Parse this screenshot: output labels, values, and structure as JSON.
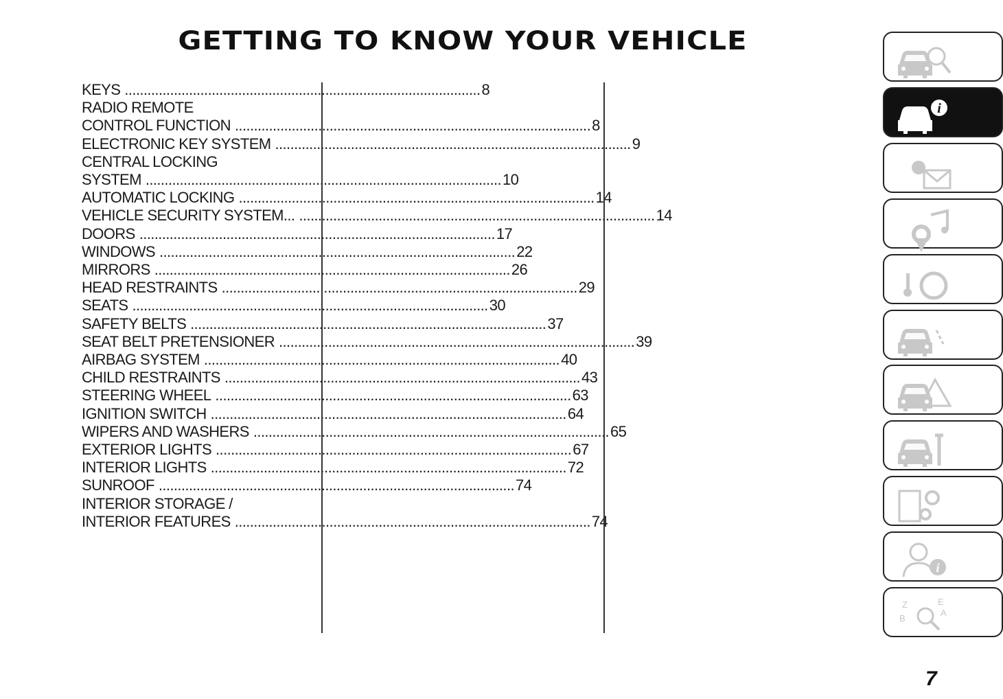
{
  "title": "GETTING TO KNOW YOUR VEHICLE",
  "toc": [
    {
      "lines": [
        {
          "text": "KEYS",
          "page": "8"
        }
      ]
    },
    {
      "lines": [
        {
          "text": "RADIO REMOTE"
        },
        {
          "text": "CONTROL FUNCTION",
          "page": "8"
        }
      ]
    },
    {
      "lines": [
        {
          "text": "ELECTRONIC KEY SYSTEM",
          "page": "9"
        }
      ]
    },
    {
      "lines": [
        {
          "text": "CENTRAL LOCKING"
        },
        {
          "text": "SYSTEM",
          "page": "10"
        }
      ]
    },
    {
      "lines": [
        {
          "text": "AUTOMATIC LOCKING",
          "page": "14"
        }
      ]
    },
    {
      "lines": [
        {
          "text": "VEHICLE SECURITY SYSTEM...",
          "page": "14"
        }
      ]
    },
    {
      "lines": [
        {
          "text": "DOORS",
          "page": "17"
        }
      ]
    },
    {
      "lines": [
        {
          "text": "WINDOWS",
          "page": "22"
        }
      ]
    },
    {
      "lines": [
        {
          "text": "MIRRORS",
          "page": "26"
        }
      ]
    },
    {
      "lines": [
        {
          "text": "HEAD RESTRAINTS",
          "page": "29"
        }
      ]
    },
    {
      "lines": [
        {
          "text": "SEATS",
          "page": "30"
        }
      ]
    },
    {
      "lines": [
        {
          "text": "SAFETY BELTS",
          "page": "37"
        }
      ]
    },
    {
      "lines": [
        {
          "text": "SEAT BELT PRETENSIONER",
          "page": "39"
        }
      ]
    },
    {
      "lines": [
        {
          "text": "AIRBAG SYSTEM",
          "page": "40"
        }
      ]
    },
    {
      "lines": [
        {
          "text": "CHILD RESTRAINTS",
          "page": "43"
        }
      ]
    },
    {
      "lines": [
        {
          "text": "STEERING WHEEL",
          "page": "63"
        }
      ]
    },
    {
      "lines": [
        {
          "text": "IGNITION SWITCH",
          "page": "64"
        }
      ]
    },
    {
      "lines": [
        {
          "text": "WIPERS AND WASHERS",
          "page": "65"
        }
      ]
    },
    {
      "lines": [
        {
          "text": "EXTERIOR LIGHTS",
          "page": "67"
        }
      ]
    },
    {
      "lines": [
        {
          "text": "INTERIOR LIGHTS",
          "page": "72"
        }
      ]
    },
    {
      "lines": [
        {
          "text": "SUNROOF",
          "page": "74"
        }
      ]
    },
    {
      "lines": [
        {
          "text": "INTERIOR STORAGE /"
        },
        {
          "text": "INTERIOR FEATURES",
          "page": "74"
        }
      ]
    }
  ],
  "tabs": [
    {
      "icon": "car-search-icon",
      "active": false
    },
    {
      "icon": "car-info-icon",
      "active": true
    },
    {
      "icon": "warning-light-message-icon",
      "active": false
    },
    {
      "icon": "radio-navigation-music-icon",
      "active": false
    },
    {
      "icon": "starting-driving-icon",
      "active": false
    },
    {
      "icon": "driver-assistance-icon",
      "active": false
    },
    {
      "icon": "emergency-car-icon",
      "active": false
    },
    {
      "icon": "car-maintenance-icon",
      "active": false
    },
    {
      "icon": "technical-specs-icon",
      "active": false
    },
    {
      "icon": "user-info-icon",
      "active": false
    },
    {
      "icon": "alphabetical-index-icon",
      "active": false
    }
  ],
  "page_number": "7",
  "colors": {
    "text": "#1a1a1a",
    "icon_inactive": "#c8c8c8",
    "active_tab": "#111111"
  }
}
